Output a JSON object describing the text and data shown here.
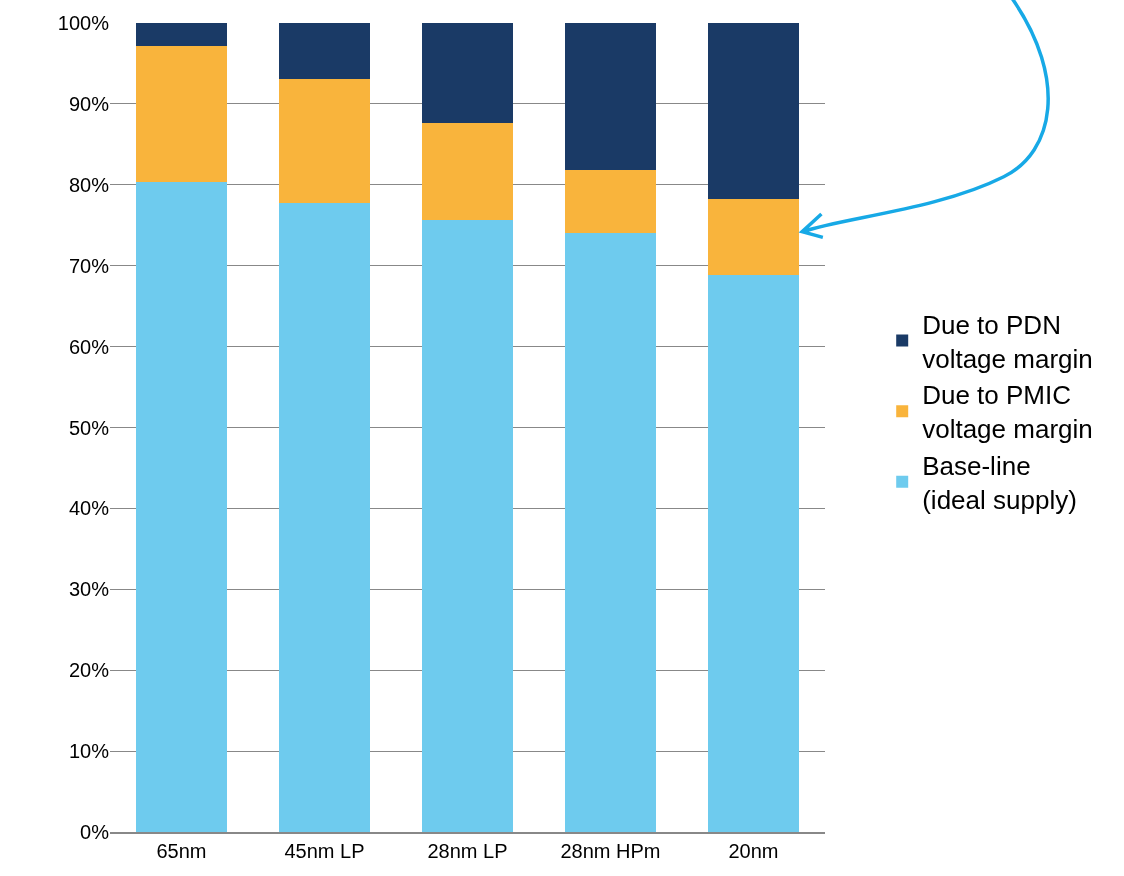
{
  "chart_data": {
    "type": "bar",
    "stacked": true,
    "categories": [
      "65nm",
      "45nm LP",
      "28nm LP",
      "28nm HPm",
      "20nm"
    ],
    "series": [
      {
        "name": "Base-line (ideal supply)",
        "color": "#6ecbee",
        "values": [
          80.3,
          77.8,
          75.6,
          74.1,
          68.9
        ]
      },
      {
        "name": "Due to PMIC voltage margin",
        "color": "#f9b43c",
        "values": [
          16.9,
          15.3,
          12.1,
          7.7,
          9.4
        ]
      },
      {
        "name": "Due to PDN voltage margin",
        "color": "#1a3a66",
        "values": [
          2.8,
          6.9,
          12.3,
          18.2,
          21.7
        ]
      }
    ],
    "ylim": [
      0,
      100
    ],
    "yticks": [
      {
        "value": 0,
        "label": "0%"
      },
      {
        "value": 10,
        "label": "10%"
      },
      {
        "value": 20,
        "label": "20%"
      },
      {
        "value": 30,
        "label": "30%"
      },
      {
        "value": 40,
        "label": "40%"
      },
      {
        "value": 50,
        "label": "50%"
      },
      {
        "value": 60,
        "label": "60%"
      },
      {
        "value": 70,
        "label": "70%"
      },
      {
        "value": 80,
        "label": "80%"
      },
      {
        "value": 90,
        "label": "90%"
      },
      {
        "value": 100,
        "label": "100%"
      }
    ],
    "grid": "y",
    "legend": "right"
  }
}
